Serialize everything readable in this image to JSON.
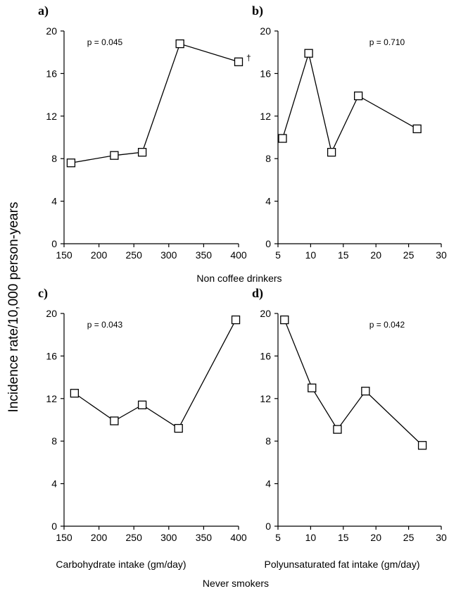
{
  "figure": {
    "ylabel": "Incidence rate/10,000 person-years",
    "row_labels": [
      "Non coffee drinkers",
      "Never smokers"
    ]
  },
  "chart_data": [
    {
      "type": "line",
      "panel": "a)",
      "p_value": "p = 0.045",
      "marker_note": "†",
      "xlabel": "",
      "xlim": [
        150,
        400
      ],
      "xticks": [
        150,
        200,
        250,
        300,
        350,
        400
      ],
      "ylim": [
        0,
        20
      ],
      "yticks": [
        0,
        4,
        8,
        12,
        16,
        20
      ],
      "grid": false,
      "x": [
        160,
        222,
        262,
        316,
        400
      ],
      "y": [
        7.6,
        8.3,
        8.6,
        18.8,
        17.1
      ]
    },
    {
      "type": "line",
      "panel": "b)",
      "p_value": "p = 0.710",
      "xlabel": "",
      "xlim": [
        5,
        30
      ],
      "xticks": [
        5,
        10,
        15,
        20,
        25,
        30
      ],
      "ylim": [
        0,
        20
      ],
      "yticks": [
        0,
        4,
        8,
        12,
        16,
        20
      ],
      "grid": false,
      "x": [
        5.7,
        9.7,
        13.2,
        17.3,
        26.3
      ],
      "y": [
        9.9,
        17.9,
        8.6,
        13.9,
        10.8
      ]
    },
    {
      "type": "line",
      "panel": "c)",
      "p_value": "p = 0.043",
      "xlabel": "Carbohydrate intake (gm/day)",
      "xlim": [
        150,
        400
      ],
      "xticks": [
        150,
        200,
        250,
        300,
        350,
        400
      ],
      "ylim": [
        0,
        20
      ],
      "yticks": [
        0,
        4,
        8,
        12,
        16,
        20
      ],
      "grid": false,
      "x": [
        165,
        222,
        262,
        314,
        396
      ],
      "y": [
        12.5,
        9.9,
        11.4,
        9.2,
        19.4
      ]
    },
    {
      "type": "line",
      "panel": "d)",
      "p_value": "p = 0.042",
      "xlabel": "Polyunsaturated fat intake (gm/day)",
      "xlim": [
        5,
        30
      ],
      "xticks": [
        5,
        10,
        15,
        20,
        25,
        30
      ],
      "ylim": [
        0,
        20
      ],
      "yticks": [
        0,
        4,
        8,
        12,
        16,
        20
      ],
      "grid": false,
      "x": [
        6.0,
        10.2,
        14.1,
        18.4,
        27.1
      ],
      "y": [
        19.4,
        13.0,
        9.1,
        12.7,
        7.6
      ]
    }
  ]
}
